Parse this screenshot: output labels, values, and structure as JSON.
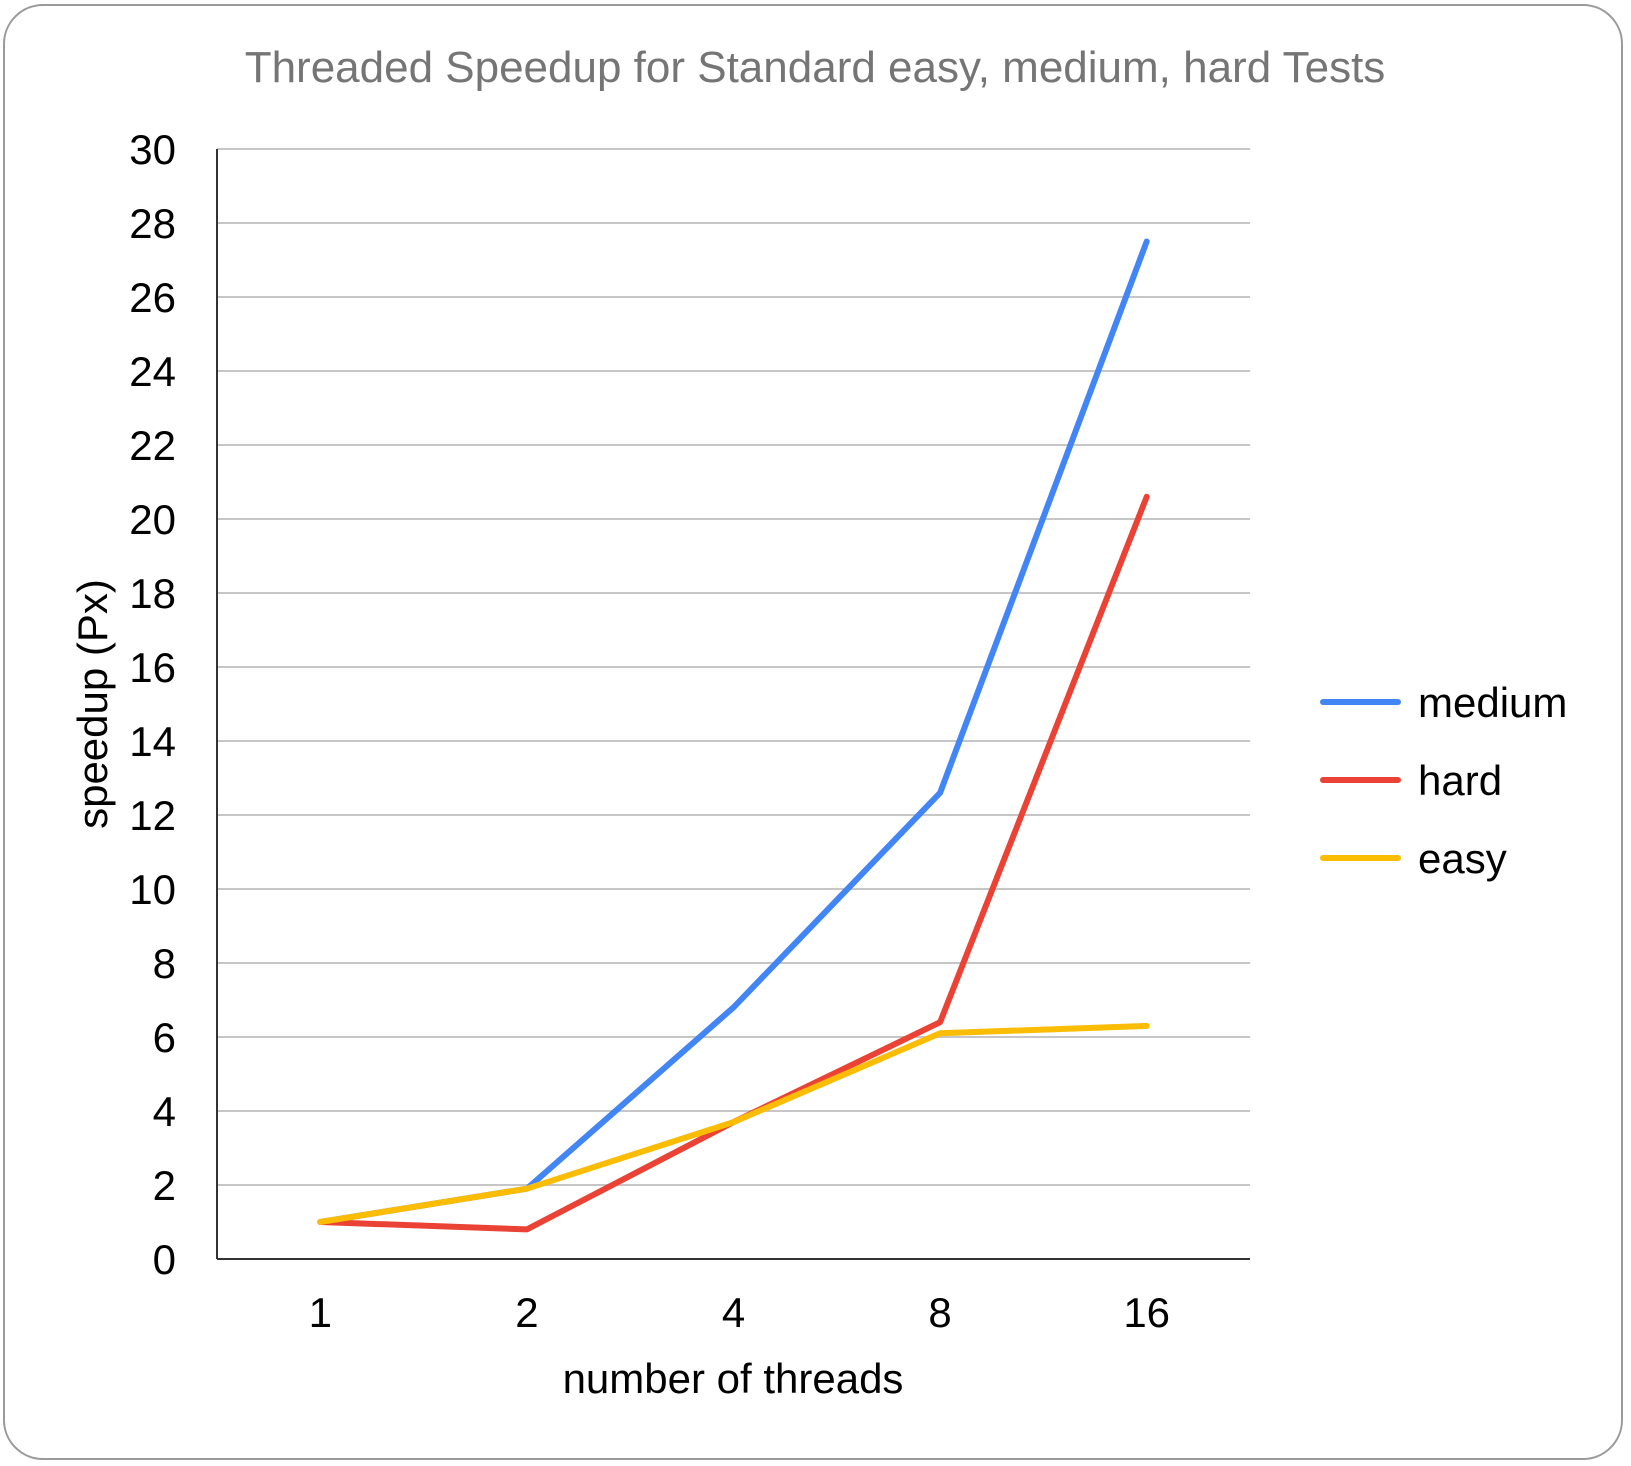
{
  "chart_data": {
    "type": "line",
    "title": "Threaded Speedup for Standard easy, medium, hard Tests",
    "xlabel": "number of threads",
    "ylabel": "speedup (Px)",
    "categories": [
      "1",
      "2",
      "4",
      "8",
      "16"
    ],
    "ylim": [
      0,
      30
    ],
    "yticks": [
      0,
      2,
      4,
      6,
      8,
      10,
      12,
      14,
      16,
      18,
      20,
      22,
      24,
      26,
      28,
      30
    ],
    "grid": true,
    "legend_position": "right",
    "series": [
      {
        "name": "medium",
        "color": "#4285F4",
        "values": [
          1.0,
          1.9,
          6.8,
          12.6,
          27.5
        ]
      },
      {
        "name": "hard",
        "color": "#EA4335",
        "values": [
          1.0,
          0.8,
          3.7,
          6.4,
          20.6
        ]
      },
      {
        "name": "easy",
        "color": "#FBBC04",
        "values": [
          1.0,
          1.9,
          3.7,
          6.1,
          6.3
        ]
      }
    ]
  }
}
